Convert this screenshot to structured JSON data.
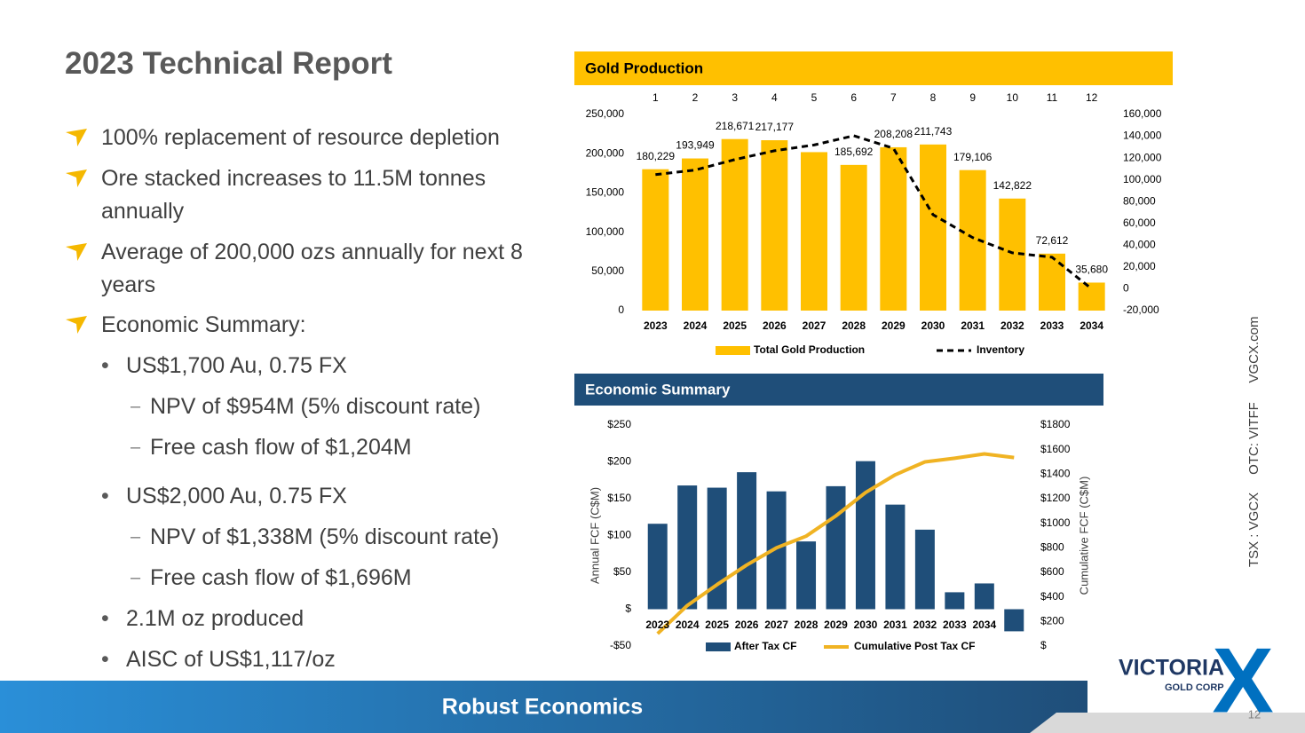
{
  "title": "2023 Technical Report",
  "bullets": [
    {
      "text": "100% replacement of resource depletion",
      "level": 0
    },
    {
      "text": "Ore stacked increases to 11.5M tonnes annually",
      "level": 0
    },
    {
      "text": "Average of 200,000 ozs annually for next 8 years",
      "level": 0
    },
    {
      "text": "Economic Summary:",
      "level": 0
    },
    {
      "text": "US$1,700 Au, 0.75 FX",
      "level": 1
    },
    {
      "text": "NPV of $954M (5% discount rate)",
      "level": 2
    },
    {
      "text": "Free cash flow of $1,204M",
      "level": 2
    },
    {
      "text": "US$2,000 Au, 0.75 FX",
      "level": 1
    },
    {
      "text": "NPV of $1,338M (5% discount rate)",
      "level": 2
    },
    {
      "text": "Free cash flow of $1,696M",
      "level": 2
    },
    {
      "text": "2.1M oz produced",
      "level": 1
    },
    {
      "text": "AISC of US$1,117/oz",
      "level": 1
    }
  ],
  "footer": "Robust Economics",
  "side_text": [
    "TSX : VGCX",
    "OTC: VITFF",
    "VGCX.com"
  ],
  "logo": {
    "name": "VICTORIA",
    "sub": "GOLD CORP",
    "mark": "X"
  },
  "page_number": "12",
  "chart_data": [
    {
      "type": "bar",
      "title": "Gold Production",
      "top_labels": [
        1,
        2,
        3,
        4,
        5,
        6,
        7,
        8,
        9,
        10,
        11,
        12
      ],
      "categories": [
        "2023",
        "2024",
        "2025",
        "2026",
        "2027",
        "2028",
        "2029",
        "2030",
        "2031",
        "2032",
        "2033",
        "2034"
      ],
      "series": [
        {
          "name": "Total Gold Production",
          "color": "#ffc000",
          "values": [
            180229,
            193949,
            218671,
            217177,
            202000,
            185692,
            208208,
            211743,
            179106,
            142822,
            72612,
            35680
          ],
          "value_labels": [
            "180,229",
            "193,949",
            "218,671",
            "217,177",
            null,
            "185,692",
            "208,208",
            "211,743",
            "179,106",
            "142,822",
            "72,612",
            "35,680"
          ]
        },
        {
          "name": "Inventory",
          "type": "line",
          "color": "#000000",
          "dashed": true,
          "axis": "y2",
          "values": [
            104800,
            109000,
            118600,
            126700,
            132000,
            140500,
            129000,
            68000,
            47000,
            33000,
            29000,
            0
          ]
        }
      ],
      "ylim": [
        0,
        250000
      ],
      "yticks": [
        {
          "value": 0,
          "label": "0"
        },
        {
          "value": 50000,
          "label": "50,000"
        },
        {
          "value": 100000,
          "label": "100,000"
        },
        {
          "value": 150000,
          "label": "150,000"
        },
        {
          "value": 200000,
          "label": "200,000"
        },
        {
          "value": 250000,
          "label": "250,000"
        }
      ],
      "y2lim": [
        -20000,
        160000
      ],
      "y2ticks": [
        {
          "value": -20000,
          "label": "-20,000"
        },
        {
          "value": 0,
          "label": "0"
        },
        {
          "value": 20000,
          "label": "20,000"
        },
        {
          "value": 40000,
          "label": "40,000"
        },
        {
          "value": 60000,
          "label": "60,000"
        },
        {
          "value": 80000,
          "label": "80,000"
        },
        {
          "value": 100000,
          "label": "100,000"
        },
        {
          "value": 120000,
          "label": "120,000"
        },
        {
          "value": 140000,
          "label": "140,000"
        },
        {
          "value": 160000,
          "label": "160,000"
        }
      ]
    },
    {
      "type": "bar",
      "title": "Economic Summary",
      "ylabel": "Annual FCF (C$M)",
      "y2label": "Cumulative FCF (C$M)",
      "categories": [
        "2023",
        "2024",
        "2025",
        "2026",
        "2027",
        "2028",
        "2029",
        "2030",
        "2031",
        "2032",
        "2033",
        "2034",
        null
      ],
      "series": [
        {
          "name": "After Tax CF",
          "color": "#1f4e79",
          "values": [
            116,
            168,
            165,
            186,
            160,
            92,
            167,
            201,
            142,
            108,
            23,
            35,
            -30
          ]
        },
        {
          "name": "Cumulative Post Tax CF",
          "type": "line",
          "color": "#f0b323",
          "axis": "y2",
          "values": [
            101,
            330,
            500,
            660,
            800,
            895,
            1060,
            1250,
            1395,
            1500,
            1530,
            1565,
            1535
          ]
        }
      ],
      "ylim": [
        -50,
        250
      ],
      "yticks": [
        {
          "value": -50,
          "label": "-$50"
        },
        {
          "value": 0,
          "label": "$"
        },
        {
          "value": 50,
          "label": "$50"
        },
        {
          "value": 100,
          "label": "$100"
        },
        {
          "value": 150,
          "label": "$150"
        },
        {
          "value": 200,
          "label": "$200"
        },
        {
          "value": 250,
          "label": "$250"
        }
      ],
      "y2lim": [
        0,
        1800
      ],
      "y2ticks": [
        {
          "value": 0,
          "label": "$"
        },
        {
          "value": 200,
          "label": "$200"
        },
        {
          "value": 400,
          "label": "$400"
        },
        {
          "value": 600,
          "label": "$600"
        },
        {
          "value": 800,
          "label": "$800"
        },
        {
          "value": 1000,
          "label": "$1000"
        },
        {
          "value": 1200,
          "label": "$1200"
        },
        {
          "value": 1400,
          "label": "$1400"
        },
        {
          "value": 1600,
          "label": "$1600"
        },
        {
          "value": 1800,
          "label": "$1800"
        }
      ]
    }
  ]
}
